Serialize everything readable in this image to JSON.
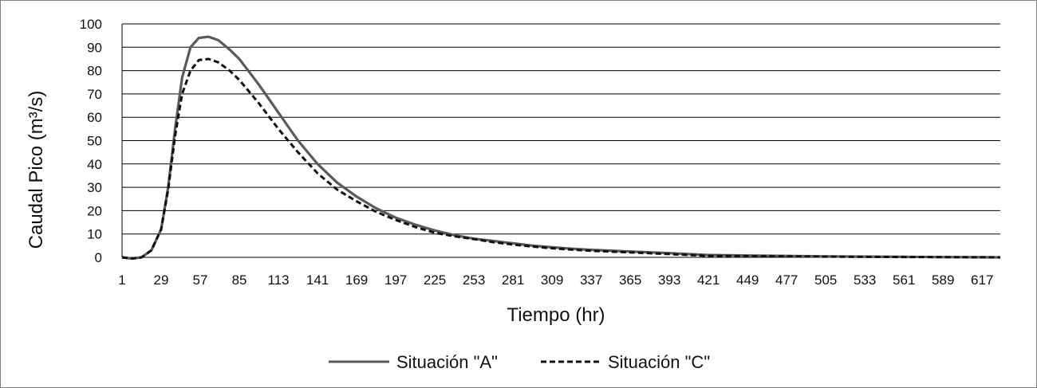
{
  "chart_data": {
    "type": "line",
    "xlabel": "Tiempo (hr)",
    "ylabel": "Caudal Pico (m³/s)",
    "ylim": [
      0,
      100
    ],
    "yticks": [
      "0",
      "10",
      "20",
      "30",
      "40",
      "50",
      "60",
      "70",
      "80",
      "90",
      "100"
    ],
    "xlim": [
      1,
      630
    ],
    "xticks": [
      "1",
      "29",
      "57",
      "85",
      "113",
      "141",
      "169",
      "197",
      "225",
      "253",
      "281",
      "309",
      "337",
      "365",
      "393",
      "421",
      "449",
      "477",
      "505",
      "533",
      "561",
      "589",
      "617"
    ],
    "grid": "horizontal",
    "legend_position": "bottom",
    "series": [
      {
        "name": "Situación \"A\"",
        "style": "solid",
        "color": "#5a5a5a",
        "points": [
          [
            1,
            0
          ],
          [
            8,
            -0.5
          ],
          [
            15,
            0
          ],
          [
            22,
            3
          ],
          [
            29,
            12
          ],
          [
            34,
            30
          ],
          [
            39,
            55
          ],
          [
            44,
            77
          ],
          [
            50,
            90
          ],
          [
            56,
            94
          ],
          [
            63,
            94.5
          ],
          [
            70,
            93
          ],
          [
            78,
            89
          ],
          [
            85,
            85
          ],
          [
            99,
            74
          ],
          [
            113,
            62
          ],
          [
            127,
            50
          ],
          [
            141,
            40
          ],
          [
            155,
            32
          ],
          [
            169,
            26
          ],
          [
            183,
            21
          ],
          [
            197,
            17
          ],
          [
            211,
            14
          ],
          [
            225,
            11.5
          ],
          [
            239,
            9.5
          ],
          [
            253,
            8
          ],
          [
            267,
            7
          ],
          [
            281,
            6
          ],
          [
            295,
            5
          ],
          [
            309,
            4.3
          ],
          [
            323,
            3.7
          ],
          [
            337,
            3.2
          ],
          [
            365,
            2.5
          ],
          [
            393,
            1.8
          ],
          [
            421,
            1
          ],
          [
            449,
            0.8
          ],
          [
            477,
            0.6
          ],
          [
            505,
            0.4
          ],
          [
            533,
            0.3
          ],
          [
            561,
            0.2
          ],
          [
            589,
            0.1
          ],
          [
            617,
            0.05
          ],
          [
            630,
            0
          ]
        ]
      },
      {
        "name": "Situación \"C\"",
        "style": "dashed",
        "color": "#111111",
        "points": [
          [
            1,
            0
          ],
          [
            8,
            -0.5
          ],
          [
            15,
            0
          ],
          [
            22,
            3
          ],
          [
            29,
            12
          ],
          [
            34,
            29
          ],
          [
            39,
            52
          ],
          [
            44,
            70
          ],
          [
            50,
            80
          ],
          [
            56,
            84.5
          ],
          [
            63,
            85
          ],
          [
            70,
            83.5
          ],
          [
            78,
            80
          ],
          [
            85,
            76
          ],
          [
            99,
            66
          ],
          [
            113,
            55
          ],
          [
            127,
            45
          ],
          [
            141,
            36
          ],
          [
            155,
            29
          ],
          [
            169,
            24
          ],
          [
            183,
            19.5
          ],
          [
            197,
            16
          ],
          [
            211,
            13
          ],
          [
            225,
            10.5
          ],
          [
            239,
            9
          ],
          [
            253,
            7.8
          ],
          [
            267,
            6.5
          ],
          [
            281,
            5.5
          ],
          [
            295,
            4.6
          ],
          [
            309,
            3.9
          ],
          [
            323,
            3.3
          ],
          [
            337,
            2.8
          ],
          [
            365,
            2.1
          ],
          [
            393,
            1.4
          ],
          [
            421,
            0.6
          ],
          [
            449,
            0.5
          ],
          [
            477,
            0.4
          ],
          [
            505,
            0.3
          ],
          [
            533,
            0.2
          ],
          [
            561,
            0.15
          ],
          [
            589,
            0.1
          ],
          [
            617,
            0.05
          ],
          [
            630,
            0
          ]
        ]
      }
    ]
  }
}
